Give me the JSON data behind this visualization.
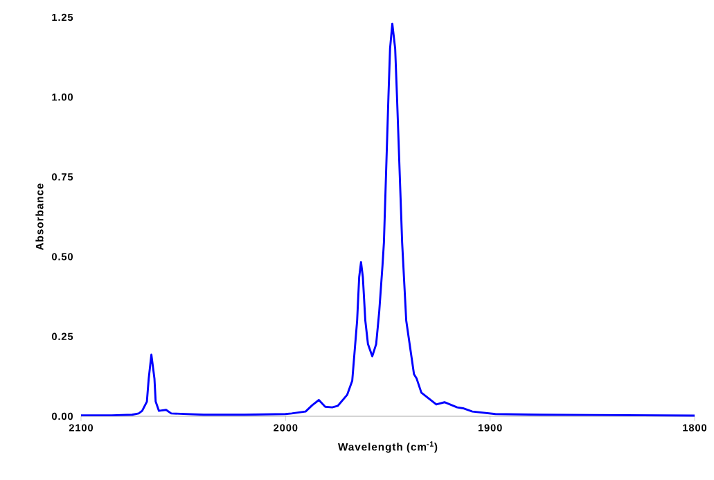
{
  "chart_data": {
    "type": "line",
    "xlabel": "Wavelength (cm$^{-1}$)",
    "ylabel": "Absorbance",
    "xlim": [
      2100,
      1800
    ],
    "ylim": [
      0,
      1.25
    ],
    "xticks": [
      2100,
      2000,
      1900,
      1800
    ],
    "yticks": [
      {
        "value": 0,
        "label": "0.00"
      },
      {
        "value": 0.25,
        "label": "0.25"
      },
      {
        "value": 0.5,
        "label": "0.50"
      },
      {
        "value": 0.75,
        "label": "0.75"
      },
      {
        "value": 1,
        "label": "1.00"
      },
      {
        "value": 1.25,
        "label": "1.25"
      }
    ],
    "grid": false,
    "marker": "none",
    "line_style": "solid",
    "series": [
      {
        "color": "#0000ff",
        "x": [
          2100,
          2085,
          2075,
          2071.8,
          2070.1,
          2067.8,
          2066.9,
          2065.6,
          2064.1,
          2063.5,
          2061.9,
          2058.4,
          2055.9,
          2040,
          2020,
          2000,
          1997,
          1990.2,
          1986.9,
          1983.7,
          1980.6,
          1977.2,
          1974.4,
          1969.9,
          1967.4,
          1965.0,
          1964.0,
          1963.1,
          1962.2,
          1961.0,
          1959.7,
          1957.6,
          1955.7,
          1954.2,
          1952.6,
          1951.9,
          1949.7,
          1948.9,
          1947.8,
          1946.4,
          1945.5,
          1943.0,
          1941.0,
          1937.2,
          1935.9,
          1933.6,
          1926.3,
          1922.3,
          1916.1,
          1913.2,
          1908.7,
          1897.4,
          1875,
          1850,
          1825,
          1800
        ],
        "values": [
          0.003,
          0.003,
          0.005,
          0.009,
          0.017,
          0.046,
          0.118,
          0.193,
          0.118,
          0.046,
          0.017,
          0.02,
          0.009,
          0.005,
          0.005,
          0.007,
          0.009,
          0.015,
          0.035,
          0.051,
          0.03,
          0.028,
          0.033,
          0.067,
          0.111,
          0.3,
          0.436,
          0.483,
          0.436,
          0.3,
          0.226,
          0.188,
          0.226,
          0.328,
          0.472,
          0.545,
          1.0,
          1.152,
          1.23,
          1.152,
          1.0,
          0.545,
          0.3,
          0.132,
          0.118,
          0.074,
          0.037,
          0.044,
          0.028,
          0.025,
          0.015,
          0.007,
          0.005,
          0.004,
          0.003,
          0.002
        ]
      }
    ]
  }
}
